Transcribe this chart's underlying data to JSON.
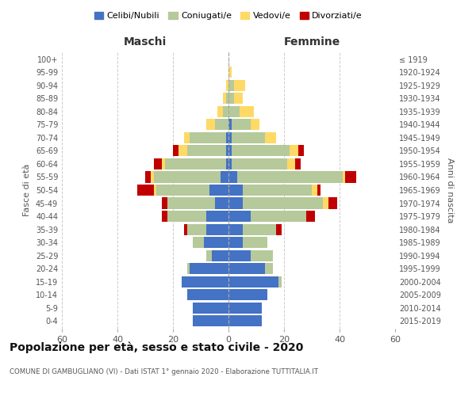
{
  "age_groups": [
    "0-4",
    "5-9",
    "10-14",
    "15-19",
    "20-24",
    "25-29",
    "30-34",
    "35-39",
    "40-44",
    "45-49",
    "50-54",
    "55-59",
    "60-64",
    "65-69",
    "70-74",
    "75-79",
    "80-84",
    "85-89",
    "90-94",
    "95-99",
    "100+"
  ],
  "birth_years": [
    "2015-2019",
    "2010-2014",
    "2005-2009",
    "2000-2004",
    "1995-1999",
    "1990-1994",
    "1985-1989",
    "1980-1984",
    "1975-1979",
    "1970-1974",
    "1965-1969",
    "1960-1964",
    "1955-1959",
    "1950-1954",
    "1945-1949",
    "1940-1944",
    "1935-1939",
    "1930-1934",
    "1925-1929",
    "1920-1924",
    "≤ 1919"
  ],
  "maschi": {
    "celibi": [
      13,
      13,
      15,
      17,
      14,
      6,
      9,
      8,
      8,
      5,
      7,
      3,
      1,
      1,
      1,
      0,
      0,
      0,
      0,
      0,
      0
    ],
    "coniugati": [
      0,
      0,
      0,
      0,
      1,
      2,
      4,
      7,
      14,
      17,
      19,
      24,
      22,
      14,
      13,
      5,
      2,
      1,
      0,
      0,
      0
    ],
    "vedovi": [
      0,
      0,
      0,
      0,
      0,
      0,
      0,
      0,
      0,
      0,
      1,
      1,
      1,
      3,
      2,
      3,
      2,
      1,
      1,
      0,
      0
    ],
    "divorziati": [
      0,
      0,
      0,
      0,
      0,
      0,
      0,
      1,
      2,
      2,
      6,
      2,
      3,
      2,
      0,
      0,
      0,
      0,
      0,
      0,
      0
    ]
  },
  "femmine": {
    "nubili": [
      12,
      12,
      14,
      18,
      13,
      8,
      5,
      5,
      8,
      5,
      5,
      3,
      1,
      1,
      1,
      1,
      0,
      0,
      0,
      0,
      0
    ],
    "coniugate": [
      0,
      0,
      0,
      1,
      3,
      8,
      9,
      12,
      20,
      29,
      25,
      38,
      20,
      21,
      12,
      7,
      4,
      2,
      2,
      0,
      0
    ],
    "vedove": [
      0,
      0,
      0,
      0,
      0,
      0,
      0,
      0,
      0,
      2,
      2,
      1,
      3,
      3,
      4,
      3,
      5,
      3,
      4,
      1,
      0
    ],
    "divorziate": [
      0,
      0,
      0,
      0,
      0,
      0,
      0,
      2,
      3,
      3,
      1,
      4,
      2,
      2,
      0,
      0,
      0,
      0,
      0,
      0,
      0
    ]
  },
  "colors": {
    "celibi_nubili": "#4472C4",
    "coniugati": "#B5C99A",
    "vedovi": "#FFD966",
    "divorziati": "#C00000"
  },
  "xlim": 60,
  "title": "Popolazione per età, sesso e stato civile - 2020",
  "subtitle": "COMUNE DI GAMBUGLIANO (VI) - Dati ISTAT 1° gennaio 2020 - Elaborazione TUTTITALIA.IT",
  "ylabel_left": "Fasce di età",
  "ylabel_right": "Anni di nascita",
  "xlabel_left": "Maschi",
  "xlabel_right": "Femmine",
  "bg_color": "#FFFFFF",
  "grid_color": "#CCCCCC"
}
